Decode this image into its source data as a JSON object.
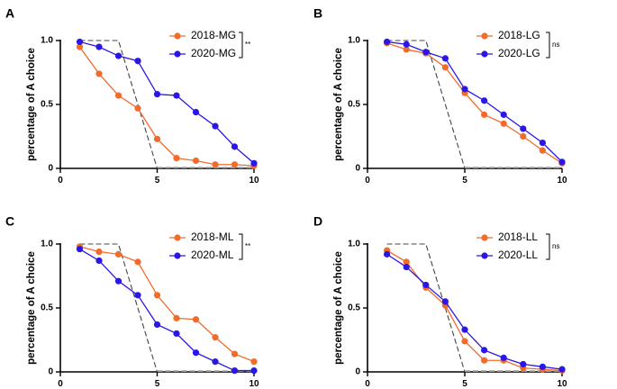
{
  "figure": {
    "colors": {
      "series_2018": "#f26b2b",
      "series_2020": "#2a16e6",
      "reference": "#444444",
      "reference_floor": "#aaaaaa",
      "axis": "#000000"
    }
  },
  "chart_data": [
    {
      "type": "line",
      "panel_label": "A",
      "ylabel": "percentage of A choice",
      "xlabel": "",
      "xlim": [
        0,
        10
      ],
      "ylim": [
        0,
        1.0
      ],
      "xticks": [
        0,
        5,
        10
      ],
      "yticks": [
        0,
        0.5,
        1.0
      ],
      "xtick_labels": [
        "0",
        "5",
        "10"
      ],
      "ytick_labels": [
        "0",
        "0.5",
        "1.0"
      ],
      "x": [
        1,
        2,
        3,
        4,
        5,
        6,
        7,
        8,
        9,
        10
      ],
      "series": [
        {
          "name": "2018-MG",
          "color": "#f26b2b",
          "values": [
            0.95,
            0.74,
            0.57,
            0.47,
            0.23,
            0.08,
            0.06,
            0.03,
            0.03,
            0.02
          ]
        },
        {
          "name": "2020-MG",
          "color": "#2a16e6",
          "values": [
            0.99,
            0.95,
            0.88,
            0.84,
            0.58,
            0.57,
            0.44,
            0.33,
            0.17,
            0.04
          ]
        }
      ],
      "reference": {
        "x": [
          1,
          3,
          5,
          10
        ],
        "y": [
          1.0,
          1.0,
          0,
          0
        ]
      },
      "legend_position": "top-right",
      "significance": "**"
    },
    {
      "type": "line",
      "panel_label": "B",
      "ylabel": "percentage of A choice",
      "xlabel": "",
      "xlim": [
        0,
        10
      ],
      "ylim": [
        0,
        1.0
      ],
      "xticks": [
        0,
        5,
        10
      ],
      "yticks": [
        0,
        0.5,
        1.0
      ],
      "xtick_labels": [
        "0",
        "5",
        "10"
      ],
      "ytick_labels": [
        "0",
        "0.5",
        "1.0"
      ],
      "x": [
        1,
        2,
        3,
        4,
        5,
        6,
        7,
        8,
        9,
        10
      ],
      "series": [
        {
          "name": "2018-LG",
          "color": "#f26b2b",
          "values": [
            0.98,
            0.93,
            0.9,
            0.79,
            0.59,
            0.42,
            0.35,
            0.25,
            0.14,
            0.04
          ]
        },
        {
          "name": "2020-LG",
          "color": "#2a16e6",
          "values": [
            0.99,
            0.97,
            0.91,
            0.86,
            0.62,
            0.53,
            0.42,
            0.31,
            0.2,
            0.05
          ]
        }
      ],
      "reference": {
        "x": [
          1,
          3,
          5,
          10
        ],
        "y": [
          1.0,
          1.0,
          0,
          0
        ]
      },
      "legend_position": "top-right",
      "significance": "ns"
    },
    {
      "type": "line",
      "panel_label": "C",
      "ylabel": "percentage of A choice",
      "xlabel": "",
      "xlim": [
        0,
        10
      ],
      "ylim": [
        0,
        1.0
      ],
      "xticks": [
        0,
        5,
        10
      ],
      "yticks": [
        0,
        0.5,
        1.0
      ],
      "xtick_labels": [
        "0",
        "5",
        "10"
      ],
      "ytick_labels": [
        "0",
        "0.5",
        "1.0"
      ],
      "x": [
        1,
        2,
        3,
        4,
        5,
        6,
        7,
        8,
        9,
        10
      ],
      "series": [
        {
          "name": "2018-ML",
          "color": "#f26b2b",
          "values": [
            0.98,
            0.94,
            0.92,
            0.86,
            0.6,
            0.42,
            0.41,
            0.27,
            0.14,
            0.08
          ]
        },
        {
          "name": "2020-ML",
          "color": "#2a16e6",
          "values": [
            0.96,
            0.87,
            0.71,
            0.6,
            0.37,
            0.3,
            0.15,
            0.08,
            0.01,
            0.01
          ]
        }
      ],
      "reference": {
        "x": [
          1,
          3,
          5,
          10
        ],
        "y": [
          1.0,
          1.0,
          0,
          0
        ]
      },
      "legend_position": "top-right",
      "significance": "**"
    },
    {
      "type": "line",
      "panel_label": "D",
      "ylabel": "percentage of A choice",
      "xlabel": "",
      "xlim": [
        0,
        10
      ],
      "ylim": [
        0,
        1.0
      ],
      "xticks": [
        0,
        5,
        10
      ],
      "yticks": [
        0,
        0.5,
        1.0
      ],
      "xtick_labels": [
        "0",
        "5",
        "10"
      ],
      "ytick_labels": [
        "0",
        "0.5",
        "1.0"
      ],
      "x": [
        1,
        2,
        3,
        4,
        5,
        6,
        7,
        8,
        9,
        10
      ],
      "series": [
        {
          "name": "2018-LL",
          "color": "#f26b2b",
          "values": [
            0.95,
            0.86,
            0.66,
            0.52,
            0.24,
            0.09,
            0.09,
            0.03,
            0.02,
            0.01
          ]
        },
        {
          "name": "2020-LL",
          "color": "#2a16e6",
          "values": [
            0.92,
            0.82,
            0.68,
            0.55,
            0.33,
            0.17,
            0.11,
            0.06,
            0.04,
            0.02
          ]
        }
      ],
      "reference": {
        "x": [
          1,
          3,
          5,
          10
        ],
        "y": [
          1.0,
          1.0,
          0,
          0
        ]
      },
      "legend_position": "top-right",
      "significance": "ns"
    }
  ]
}
